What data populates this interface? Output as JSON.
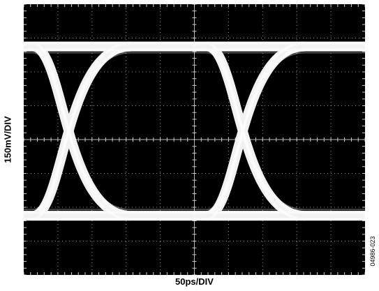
{
  "chart_data": {
    "type": "eye-diagram",
    "ylabel": "150mV/DIV",
    "xlabel": "50ps/DIV",
    "figure_id": "04986-023",
    "grid": {
      "x_divisions": 10,
      "y_divisions": 8,
      "minor_ticks_per_division": 5
    },
    "eye": {
      "high_level_div": 2.75,
      "low_level_div": -2.25,
      "crossings_div": [
        -3.3,
        1.8
      ],
      "trace_color": "#ffffff",
      "background_color": "#000000",
      "grid_color": "#cfcfcf"
    }
  }
}
